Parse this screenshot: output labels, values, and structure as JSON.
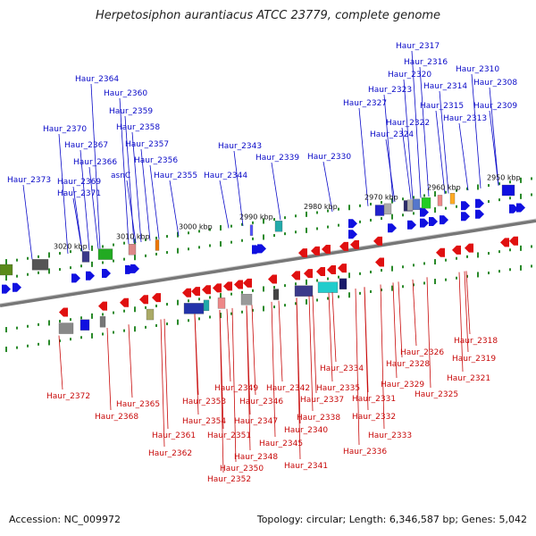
{
  "title": "Herpetosiphon aurantiacus ATCC 23779, complete genome",
  "footer": {
    "accession": "Accession: NC_009972",
    "summary": "Topology: circular; Length: 6,346,587 bp; Genes: 5,042"
  },
  "colors": {
    "forward": "#1010e0",
    "reverse": "#e01010",
    "backbone": "#888888",
    "tick": "#2a8a2a"
  },
  "scale_labels": [
    "3020 kbp",
    "3010 kbp",
    "3000 kbp",
    "2990 kbp",
    "2980 kbp",
    "2970 kbp",
    "2960 kbp",
    "2950 kbp"
  ],
  "top_labels": [
    "Haur_2373",
    "Haur_2371",
    "Haur_2370",
    "Haur_2369",
    "Haur_2367",
    "Haur_2366",
    "Haur_2364",
    "Haur_2360",
    "Haur_2359",
    "Haur_2358",
    "asnC",
    "Haur_2357",
    "Haur_2356",
    "Haur_2355",
    "Haur_2344",
    "Haur_2343",
    "Haur_2339",
    "Haur_2330",
    "Haur_2327",
    "Haur_2324",
    "Haur_2323",
    "Haur_2322",
    "Haur_2320",
    "Haur_2317",
    "Haur_2316",
    "Haur_2315",
    "Haur_2314",
    "Haur_2313",
    "Haur_2310",
    "Haur_2309",
    "Haur_2308"
  ],
  "bottom_labels": [
    "Haur_2372",
    "Haur_2368",
    "Haur_2365",
    "Haur_2362",
    "Haur_2361",
    "Haur_2354",
    "Haur_2353",
    "Haur_2352",
    "Haur_2351",
    "Haur_2350",
    "Haur_2349",
    "Haur_2348",
    "Haur_2347",
    "Haur_2346",
    "Haur_2345",
    "Haur_2342",
    "Haur_2341",
    "Haur_2340",
    "Haur_2338",
    "Haur_2337",
    "Haur_2336",
    "Haur_2335",
    "Haur_2334",
    "Haur_2333",
    "Haur_2332",
    "Haur_2331",
    "Haur_2329",
    "Haur_2328",
    "Haur_2326",
    "Haur_2325",
    "Haur_2321",
    "Haur_2319",
    "Haur_2318"
  ]
}
